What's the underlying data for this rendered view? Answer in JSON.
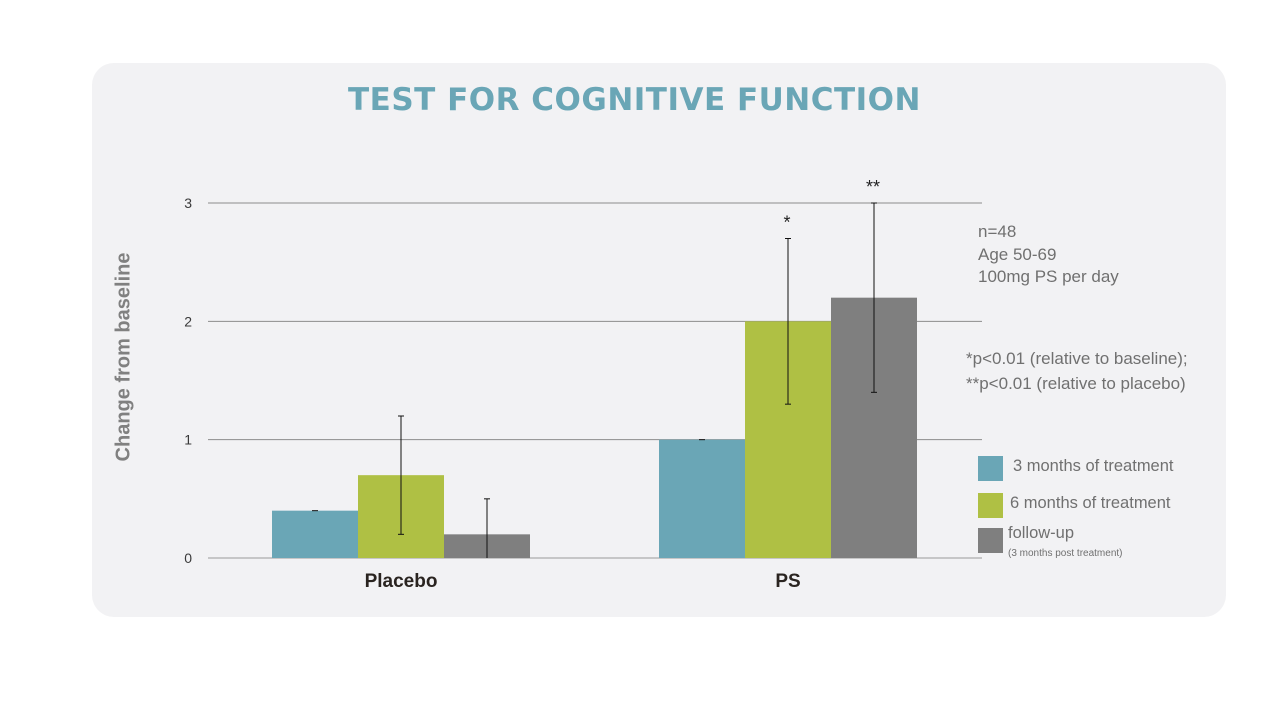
{
  "chart_data": {
    "type": "bar",
    "title": "TEST FOR COGNITIVE FUNCTION",
    "xlabel": "",
    "ylabel": "Change from baseline",
    "ylim": [
      0,
      3
    ],
    "yticks": [
      0,
      1,
      2,
      3
    ],
    "grid": true,
    "legend_position": "right",
    "categories": [
      "Placebo",
      "PS"
    ],
    "series": [
      {
        "name": "3 months of treatment",
        "color": "#6aa6b6",
        "values": [
          0.4,
          1.0
        ],
        "error": [
          0,
          0
        ]
      },
      {
        "name": "6 months of treatment",
        "sub": "",
        "color": "#afc044",
        "values": [
          0.7,
          2.0
        ],
        "error": [
          0.5,
          0.7
        ]
      },
      {
        "name": "follow-up",
        "sub": "(3 months post treatment)",
        "color": "#7f7f7f",
        "values": [
          0.2,
          2.2
        ],
        "error": [
          0.3,
          0.8
        ]
      }
    ],
    "annotations": [
      {
        "text": "*",
        "category": 1,
        "series": 1
      },
      {
        "text": "**",
        "category": 1,
        "series": 2
      }
    ]
  },
  "info": [
    "n=48",
    "Age 50-69",
    "100mg PS per day"
  ],
  "notes": [
    "*p<0.01 (relative to baseline);",
    "**p<0.01 (relative to placebo)"
  ]
}
